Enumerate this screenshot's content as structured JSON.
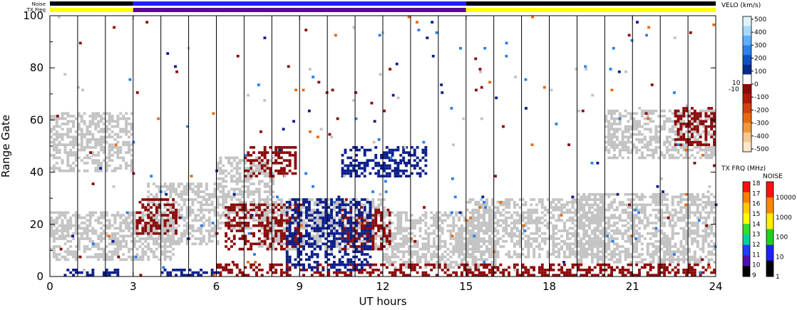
{
  "chart_data": {
    "type": "heatmap",
    "xlabel": "UT hours",
    "ylabel": "Range Gate",
    "xlim": [
      0,
      24
    ],
    "ylim": [
      0,
      100
    ],
    "xticks": [
      "0",
      "3",
      "6",
      "9",
      "12",
      "15",
      "18",
      "21",
      "24"
    ],
    "yticks": [
      "0",
      "20",
      "40",
      "60",
      "80",
      "100"
    ],
    "scan_boundaries_hours": [
      1,
      2,
      3,
      4,
      5,
      6,
      7,
      8,
      9,
      10,
      11,
      12,
      13,
      14,
      15,
      16,
      17,
      18,
      19,
      20,
      21,
      22,
      23
    ],
    "top_bars": {
      "noise_label": "Noise",
      "txfreq_label": "TX Freq",
      "txfreq_segments": [
        {
          "from": 0,
          "to": 3,
          "color": "#ffff00"
        },
        {
          "from": 3,
          "to": 15,
          "color": "#5a0a8c"
        },
        {
          "from": 15,
          "to": 24,
          "color": "#ffff00"
        }
      ],
      "noise_segments": [
        {
          "from": 0,
          "to": 3,
          "color": "#000000"
        },
        {
          "from": 3,
          "to": 15,
          "color": "#2020ff"
        },
        {
          "from": 15,
          "to": 24,
          "color": "#000000"
        }
      ]
    },
    "velocity_colorbar": {
      "title": "VELO (km/s)",
      "ticks": [
        "500",
        "400",
        "300",
        "200",
        "100",
        "0",
        "-100",
        "-200",
        "-300",
        "-400",
        "-500"
      ],
      "side_labels": [
        "10",
        "-10"
      ],
      "colors": [
        "#dff3ff",
        "#a8d8ff",
        "#5cb0ff",
        "#2a80e8",
        "#1050c0",
        "#082a8a",
        "#ffffff",
        "#8a0a0a",
        "#b01a0a",
        "#d04010",
        "#e86a10",
        "#f09838",
        "#f8c890",
        "#fde6cc"
      ]
    },
    "txfreq_colorbar": {
      "title": "TX FRQ (MHz)",
      "ticks": [
        "18",
        "17",
        "16",
        "15",
        "14",
        "13",
        "12",
        "11",
        "10",
        "9"
      ],
      "colors": [
        "#ff1010",
        "#ff8000",
        "#ffcc00",
        "#ffff00",
        "#30e030",
        "#00d0a0",
        "#2040ff",
        "#5010b0",
        "#000000"
      ]
    },
    "noise_colorbar": {
      "title": "NOISE",
      "ticks": [
        "10000",
        "1000",
        "100",
        "10",
        "1"
      ],
      "colors": [
        "#ff1010",
        "#ff8800",
        "#ffee00",
        "#20d020",
        "#2020ff",
        "#000000"
      ]
    },
    "regions": [
      {
        "class": "ground",
        "color": "#c3c3c3",
        "from": 0,
        "to": 3,
        "gmin": 40,
        "gmax": 63
      },
      {
        "class": "ground",
        "color": "#c3c3c3",
        "from": 0,
        "to": 4.5,
        "gmin": 6,
        "gmax": 25
      },
      {
        "class": "ground",
        "color": "#c3c3c3",
        "from": 3.5,
        "to": 6,
        "gmin": 12,
        "gmax": 36
      },
      {
        "class": "ground",
        "color": "#c3c3c3",
        "from": 6,
        "to": 8,
        "gmin": 18,
        "gmax": 46
      },
      {
        "class": "ground",
        "color": "#c3c3c3",
        "from": 7.5,
        "to": 12,
        "gmin": 10,
        "gmax": 30
      },
      {
        "class": "ground",
        "color": "#c3c3c3",
        "from": 12,
        "to": 16,
        "gmin": 3,
        "gmax": 25
      },
      {
        "class": "ground",
        "color": "#c3c3c3",
        "from": 15,
        "to": 20,
        "gmin": 7,
        "gmax": 30
      },
      {
        "class": "ground",
        "color": "#c3c3c3",
        "from": 19,
        "to": 24,
        "gmin": 5,
        "gmax": 32
      },
      {
        "class": "ground",
        "color": "#c3c3c3",
        "from": 20,
        "to": 24,
        "gmin": 45,
        "gmax": 64
      },
      {
        "class": "neg",
        "color": "#8b0a0a",
        "from": 6,
        "to": 24,
        "gmin": 0,
        "gmax": 5
      },
      {
        "class": "neg",
        "color": "#8b0a0a",
        "from": 6.3,
        "to": 9,
        "gmin": 10,
        "gmax": 28
      },
      {
        "class": "neg",
        "color": "#8b0a0a",
        "from": 10.5,
        "to": 12.2,
        "gmin": 10,
        "gmax": 26
      },
      {
        "class": "neg",
        "color": "#8b0a0a",
        "from": 3.1,
        "to": 4.5,
        "gmin": 16,
        "gmax": 30
      },
      {
        "class": "neg",
        "color": "#8b0a0a",
        "from": 7,
        "to": 8.8,
        "gmin": 38,
        "gmax": 50
      },
      {
        "class": "neg",
        "color": "#8b0a0a",
        "from": 22.5,
        "to": 24,
        "gmin": 50,
        "gmax": 65
      },
      {
        "class": "pos",
        "color": "#0c1f8a",
        "from": 8.5,
        "to": 11.5,
        "gmin": 2,
        "gmax": 30
      },
      {
        "class": "pos",
        "color": "#0c1f8a",
        "from": 0.5,
        "to": 2.5,
        "gmin": 0,
        "gmax": 3
      },
      {
        "class": "pos",
        "color": "#0c1f8a",
        "from": 10.5,
        "to": 13.5,
        "gmin": 38,
        "gmax": 50
      },
      {
        "class": "pos",
        "color": "#0c1f8a",
        "from": 4,
        "to": 6,
        "gmin": 0,
        "gmax": 3
      }
    ]
  }
}
